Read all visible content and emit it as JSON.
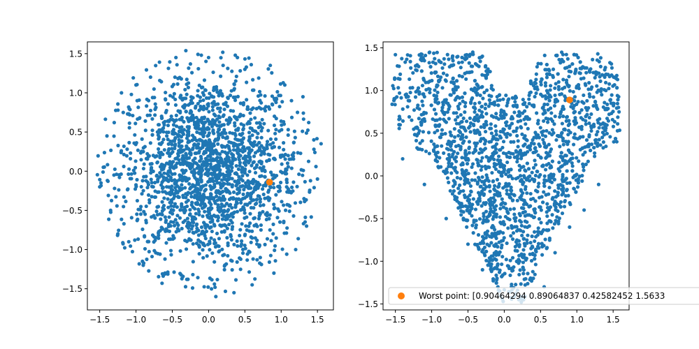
{
  "chart_data": [
    {
      "type": "scatter",
      "xlim": [
        -1.67,
        1.72
      ],
      "ylim": [
        -1.77,
        1.65
      ],
      "xticks": [
        -1.5,
        -1.0,
        -0.5,
        0.0,
        0.5,
        1.0,
        1.5
      ],
      "yticks": [
        -1.5,
        -1.0,
        -0.5,
        0.0,
        0.5,
        1.0,
        1.5
      ],
      "xtick_labels": [
        "−1.5",
        "−1.0",
        "−0.5",
        "0.0",
        "0.5",
        "1.0",
        "1.5"
      ],
      "ytick_labels": [
        "−1.5",
        "−1.0",
        "−0.5",
        "0.0",
        "0.5",
        "1.0",
        "1.5"
      ],
      "grid": false,
      "series": [
        {
          "color": "#1f77b4",
          "marker_size": "small",
          "distribution": "approximately disc-shaped cloud, radius about 1.5, centered at (0, 0)",
          "count_estimate": 2000,
          "points": [
            [
              -1.5,
              -0.2
            ],
            [
              -1.45,
              0.05
            ],
            [
              -1.4,
              0.45
            ],
            [
              -1.35,
              -0.5
            ],
            [
              -1.3,
              0.62
            ],
            [
              -1.25,
              -0.8
            ],
            [
              -1.2,
              1.0
            ],
            [
              -1.1,
              -0.9
            ],
            [
              -1.0,
              1.1
            ],
            [
              -0.9,
              -1.2
            ],
            [
              -0.8,
              1.2
            ],
            [
              -0.6,
              -1.3
            ],
            [
              -0.45,
              1.45
            ],
            [
              -0.3,
              -1.38
            ],
            [
              -0.1,
              1.48
            ],
            [
              0.0,
              1.45
            ],
            [
              0.1,
              -1.6
            ],
            [
              0.2,
              1.35
            ],
            [
              0.35,
              -1.55
            ],
            [
              0.5,
              1.3
            ],
            [
              0.6,
              -1.45
            ],
            [
              0.85,
              1.35
            ],
            [
              0.9,
              -1.3
            ],
            [
              1.05,
              1.1
            ],
            [
              1.2,
              -1.0
            ],
            [
              1.3,
              0.95
            ],
            [
              1.35,
              -0.7
            ],
            [
              1.45,
              0.4
            ],
            [
              1.5,
              -0.1
            ],
            [
              1.55,
              0.35
            ]
          ]
        },
        {
          "name": "worst point",
          "color": "#ff7f0e",
          "marker_size": "large",
          "points": [
            [
              0.84,
              -0.14
            ]
          ]
        }
      ]
    },
    {
      "type": "scatter",
      "xlim": [
        -1.67,
        1.72
      ],
      "ylim": [
        -1.57,
        1.57
      ],
      "xticks": [
        -1.5,
        -1.0,
        -0.5,
        0.0,
        0.5,
        1.0,
        1.5
      ],
      "yticks": [
        -1.5,
        -1.0,
        -0.5,
        0.0,
        0.5,
        1.0,
        1.5
      ],
      "xtick_labels": [
        "−1.5",
        "−1.0",
        "−0.5",
        "0.0",
        "0.5",
        "1.0",
        "1.5"
      ],
      "ytick_labels": [
        "−1.5",
        "−1.0",
        "−0.5",
        "0.0",
        "0.5",
        "1.0",
        "1.5"
      ],
      "grid": false,
      "legend_position": "lower-center",
      "series": [
        {
          "color": "#1f77b4",
          "marker_size": "small",
          "distribution": "heart-shaped cloud, two lobes near (-0.9, 1.0) and (1.0, 0.9), tip near (0.2, -1.45)",
          "count_estimate": 2000,
          "points": [
            [
              -1.5,
              1.42
            ],
            [
              -1.45,
              0.6
            ],
            [
              -1.4,
              0.2
            ],
            [
              -1.2,
              1.3
            ],
            [
              -1.1,
              -0.1
            ],
            [
              -0.9,
              1.35
            ],
            [
              -0.8,
              -0.5
            ],
            [
              -0.7,
              1.3
            ],
            [
              -0.5,
              -0.8
            ],
            [
              -0.3,
              -1.1
            ],
            [
              -0.1,
              -1.2
            ],
            [
              0.2,
              -1.45
            ],
            [
              0.4,
              -1.2
            ],
            [
              0.55,
              -1.3
            ],
            [
              0.7,
              -0.9
            ],
            [
              0.9,
              -0.6
            ],
            [
              0.75,
              1.1
            ],
            [
              1.0,
              1.05
            ],
            [
              1.1,
              -0.4
            ],
            [
              1.25,
              1.15
            ],
            [
              1.4,
              1.0
            ],
            [
              1.35,
              0.45
            ],
            [
              1.5,
              0.85
            ],
            [
              1.55,
              0.4
            ],
            [
              1.3,
              -0.1
            ]
          ]
        },
        {
          "name": "Worst point: [0.90464294 0.89064837 0.42582452 1.5633",
          "color": "#ff7f0e",
          "marker_size": "large",
          "points": [
            [
              0.9,
              0.89
            ]
          ]
        }
      ]
    }
  ]
}
